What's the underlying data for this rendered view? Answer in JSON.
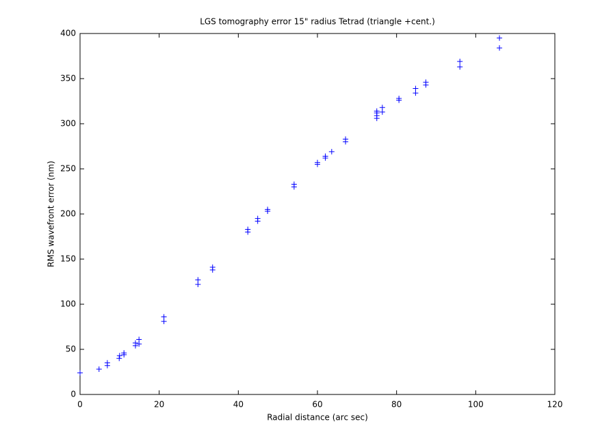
{
  "chart_data": {
    "type": "scatter",
    "title": "LGS tomography error 15\" radius Tetrad (triangle +cent.)",
    "x_label": "Radial distance (arc sec)",
    "y_label": "RMS wavefront error (nm)",
    "marker": "+",
    "color": "#0000ff",
    "x": [
      0,
      4.8,
      6.9,
      6.9,
      9.9,
      10,
      11.1,
      11.1,
      14.0,
      14.0,
      14.9,
      14.9,
      21.2,
      21.2,
      29.8,
      29.8,
      33.5,
      33.5,
      42.4,
      42.4,
      44.9,
      44.9,
      47.4,
      47.4,
      54.1,
      54.1,
      60.0,
      60.0,
      62.0,
      62.0,
      63.6,
      67.1,
      67.1,
      75.0,
      75.0,
      75.0,
      75.0,
      76.4,
      76.4,
      80.6,
      80.6,
      84.8,
      84.8,
      87.4,
      87.4,
      96.0,
      96.0,
      106.0,
      106.0
    ],
    "values": [
      24,
      28,
      32,
      35,
      40,
      43,
      44,
      46,
      54,
      57,
      56,
      61,
      81,
      86,
      122,
      127,
      138,
      141,
      180,
      183,
      192,
      195,
      203,
      205,
      230,
      233,
      255,
      257,
      262,
      264,
      269,
      280,
      283,
      306,
      309,
      312,
      314,
      313,
      318,
      326,
      328,
      334,
      339,
      343,
      346,
      363,
      369,
      384,
      395
    ],
    "xlim": [
      0,
      120
    ],
    "xticks": [
      0,
      20,
      40,
      60,
      80,
      100,
      120
    ],
    "ylim": [
      0,
      400
    ],
    "yticks": [
      0,
      50,
      100,
      150,
      200,
      250,
      300,
      350,
      400
    ],
    "grid": false
  }
}
